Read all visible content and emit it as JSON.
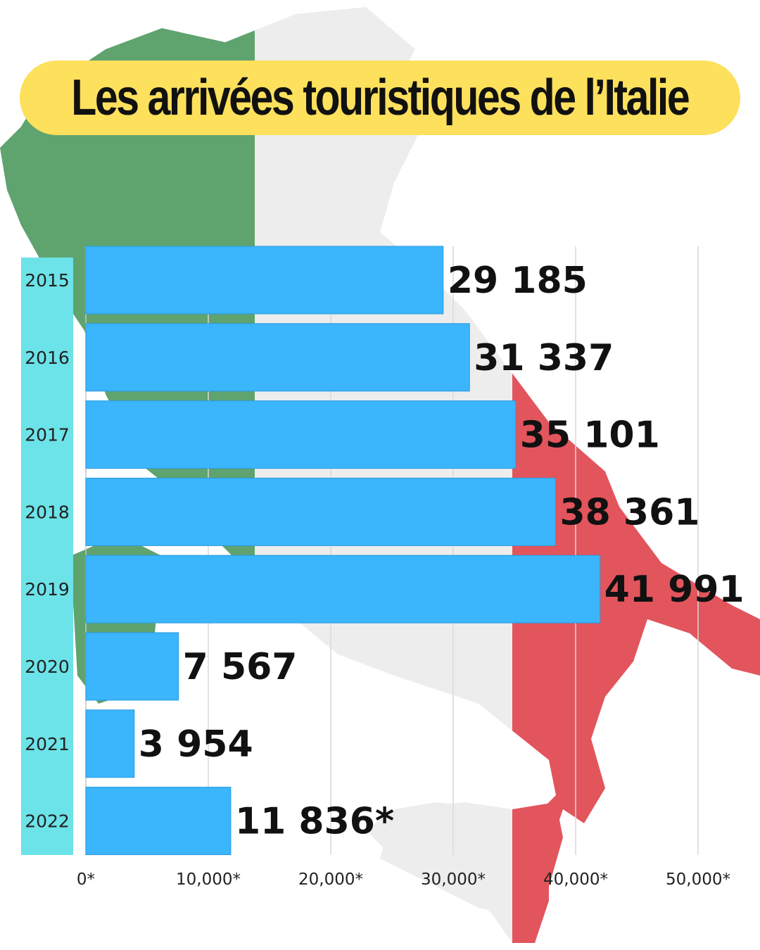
{
  "title": "Les arrivées touristiques de l’Italie",
  "colors": {
    "bar": "#3bb5fc",
    "label": "#111111",
    "pill": "#fde05c",
    "strip": "#6ce3e8",
    "italy_green": "#5fa36f",
    "italy_red": "#e2555c"
  },
  "chart_data": {
    "type": "bar",
    "orientation": "horizontal",
    "title": "Les arrivées touristiques de l’Italie",
    "categories": [
      "2015",
      "2016",
      "2017",
      "2018",
      "2019",
      "2020",
      "2021",
      "2022"
    ],
    "values": [
      29185,
      31337,
      35101,
      38361,
      41991,
      7567,
      3954,
      11836
    ],
    "value_labels": [
      "29 185",
      "31 337",
      "35 101",
      "38 361",
      "41 991",
      "7 567",
      "3 954",
      "11 836*"
    ],
    "xlim": [
      0,
      50000
    ],
    "xticks": [
      0,
      10000,
      20000,
      30000,
      40000,
      50000
    ],
    "xtick_labels": [
      "0*",
      "10,000*",
      "20,000*",
      "30,000*",
      "40,000*",
      "50,000*"
    ],
    "grid": true
  }
}
